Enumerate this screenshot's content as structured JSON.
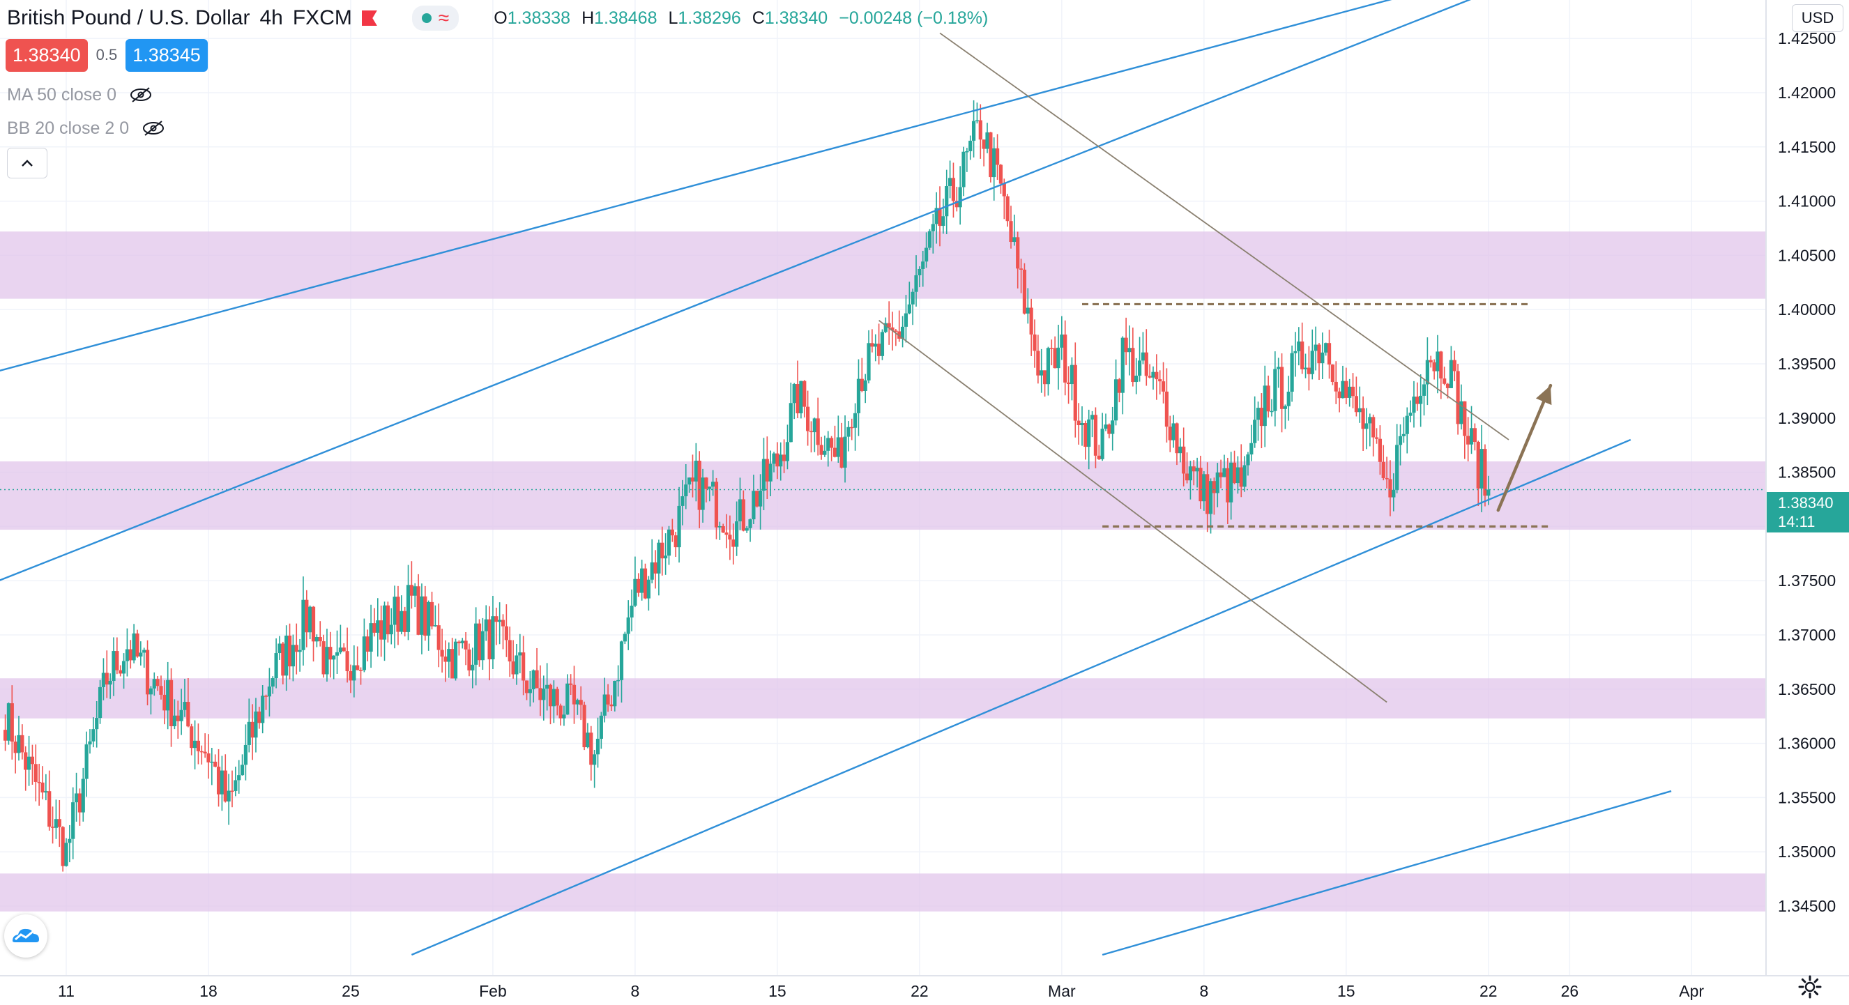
{
  "header": {
    "symbol": "British Pound / U.S. Dollar",
    "interval": "4h",
    "exchange": "FXCM",
    "ohlc": [
      {
        "k": "O",
        "v": "1.38338"
      },
      {
        "k": "H",
        "v": "1.38468"
      },
      {
        "k": "L",
        "v": "1.38296"
      },
      {
        "k": "C",
        "v": "1.38340"
      }
    ],
    "change": "−0.00248 (−0.18%)",
    "sell_price": "1.38340",
    "spread": "0.5",
    "buy_price": "1.38345"
  },
  "indicators": {
    "ma": "MA 50 close 0",
    "bb": "BB 20 close 2 0"
  },
  "currency_button": "USD",
  "last_price_label": {
    "price": "1.38340",
    "countdown": "14:11"
  },
  "colors": {
    "up": "#26a69a",
    "down": "#ef5350",
    "zone": "#e1c4ea",
    "channel": "#2f8fd8",
    "trend": "#8a8070",
    "dashed": "#8b7355",
    "arrow": "#8b7355"
  },
  "chart_data": {
    "type": "candlestick",
    "symbol": "GBPUSD",
    "timeframe": "4h",
    "y_axis": {
      "range": [
        1.3415,
        1.43
      ],
      "ticks": [
        "1.34500",
        "1.35000",
        "1.35500",
        "1.36000",
        "1.36500",
        "1.37000",
        "1.37500",
        "1.38000",
        "1.38500",
        "1.39000",
        "1.39500",
        "1.40000",
        "1.40500",
        "1.41000",
        "1.41500",
        "1.42000",
        "1.42500"
      ]
    },
    "x_axis": {
      "ticks": [
        {
          "label": "11",
          "date": "2021-01-11"
        },
        {
          "label": "18",
          "date": "2021-01-18"
        },
        {
          "label": "25",
          "date": "2021-01-25"
        },
        {
          "label": "Feb",
          "date": "2021-02-01"
        },
        {
          "label": "8",
          "date": "2021-02-08"
        },
        {
          "label": "15",
          "date": "2021-02-15"
        },
        {
          "label": "22",
          "date": "2021-02-22"
        },
        {
          "label": "Mar",
          "date": "2021-03-01"
        },
        {
          "label": "8",
          "date": "2021-03-08"
        },
        {
          "label": "15",
          "date": "2021-03-15"
        },
        {
          "label": "22",
          "date": "2021-03-22"
        },
        {
          "label": "26",
          "date": "2021-03-26"
        },
        {
          "label": "Apr",
          "date": "2021-04-01"
        }
      ]
    },
    "anchors": [
      {
        "date": "2021-01-08",
        "close": 1.3625
      },
      {
        "date": "2021-01-11",
        "close": 1.35
      },
      {
        "date": "2021-01-13",
        "close": 1.366
      },
      {
        "date": "2021-01-14",
        "close": 1.369
      },
      {
        "date": "2021-01-16",
        "close": 1.364
      },
      {
        "date": "2021-01-18",
        "close": 1.359
      },
      {
        "date": "2021-01-19",
        "close": 1.354
      },
      {
        "date": "2021-01-21",
        "close": 1.366
      },
      {
        "date": "2021-01-22",
        "close": 1.369
      },
      {
        "date": "2021-01-23",
        "close": 1.372
      },
      {
        "date": "2021-01-24",
        "close": 1.366
      },
      {
        "date": "2021-01-26",
        "close": 1.37
      },
      {
        "date": "2021-01-28",
        "close": 1.373
      },
      {
        "date": "2021-01-30",
        "close": 1.368
      },
      {
        "date": "2021-02-01",
        "close": 1.37
      },
      {
        "date": "2021-02-03",
        "close": 1.365
      },
      {
        "date": "2021-02-05",
        "close": 1.363
      },
      {
        "date": "2021-02-06",
        "close": 1.359
      },
      {
        "date": "2021-02-07",
        "close": 1.366
      },
      {
        "date": "2021-02-08",
        "close": 1.374
      },
      {
        "date": "2021-02-10",
        "close": 1.38
      },
      {
        "date": "2021-02-11",
        "close": 1.384
      },
      {
        "date": "2021-02-13",
        "close": 1.38
      },
      {
        "date": "2021-02-15",
        "close": 1.386
      },
      {
        "date": "2021-02-16",
        "close": 1.392
      },
      {
        "date": "2021-02-17",
        "close": 1.389
      },
      {
        "date": "2021-02-18",
        "close": 1.386
      },
      {
        "date": "2021-02-19",
        "close": 1.394
      },
      {
        "date": "2021-02-21",
        "close": 1.398
      },
      {
        "date": "2021-02-22",
        "close": 1.403
      },
      {
        "date": "2021-02-23",
        "close": 1.408
      },
      {
        "date": "2021-02-24",
        "close": 1.412
      },
      {
        "date": "2021-02-25",
        "close": 1.417
      },
      {
        "date": "2021-02-26",
        "close": 1.411
      },
      {
        "date": "2021-02-27",
        "close": 1.402
      },
      {
        "date": "2021-02-28",
        "close": 1.394
      },
      {
        "date": "2021-03-01",
        "close": 1.396
      },
      {
        "date": "2021-03-02",
        "close": 1.39
      },
      {
        "date": "2021-03-03",
        "close": 1.387
      },
      {
        "date": "2021-03-04",
        "close": 1.396
      },
      {
        "date": "2021-03-05",
        "close": 1.394
      },
      {
        "date": "2021-03-06",
        "close": 1.392
      },
      {
        "date": "2021-03-07",
        "close": 1.386
      },
      {
        "date": "2021-03-08",
        "close": 1.383
      },
      {
        "date": "2021-03-09",
        "close": 1.384
      },
      {
        "date": "2021-03-10",
        "close": 1.384
      },
      {
        "date": "2021-03-11",
        "close": 1.392
      },
      {
        "date": "2021-03-12",
        "close": 1.393
      },
      {
        "date": "2021-03-13",
        "close": 1.396
      },
      {
        "date": "2021-03-14",
        "close": 1.397
      },
      {
        "date": "2021-03-15",
        "close": 1.392
      },
      {
        "date": "2021-03-16",
        "close": 1.389
      },
      {
        "date": "2021-03-17",
        "close": 1.383
      },
      {
        "date": "2021-03-18",
        "close": 1.39
      },
      {
        "date": "2021-03-19",
        "close": 1.396
      },
      {
        "date": "2021-03-20",
        "close": 1.395
      },
      {
        "date": "2021-03-21",
        "close": 1.388
      },
      {
        "date": "2021-03-22",
        "close": 1.3834
      }
    ],
    "last_price": 1.3834,
    "zones": [
      {
        "from": 1.401,
        "to": 1.4072
      },
      {
        "from": 1.3797,
        "to": 1.386
      },
      {
        "from": 1.3623,
        "to": 1.366
      },
      {
        "from": 1.3445,
        "to": 1.348
      }
    ],
    "trendlines": [
      {
        "kind": "channel",
        "from": {
          "date": "2021-01-07",
          "price": 1.394
        },
        "to": {
          "date": "2021-03-20",
          "price": 1.43
        }
      },
      {
        "kind": "channel",
        "from": {
          "date": "2021-01-07",
          "price": 1.3745
        },
        "to": {
          "date": "2021-03-23",
          "price": 1.43
        }
      },
      {
        "kind": "channel",
        "from": {
          "date": "2021-01-28",
          "price": 1.3405
        },
        "to": {
          "date": "2021-03-29",
          "price": 1.388
        }
      },
      {
        "kind": "channel",
        "from": {
          "date": "2021-03-03",
          "price": 1.3405
        },
        "to": {
          "date": "2021-03-31",
          "price": 1.3556
        }
      },
      {
        "kind": "trend",
        "from": {
          "date": "2021-02-23",
          "price": 1.4255
        },
        "to": {
          "date": "2021-03-23",
          "price": 1.388
        }
      },
      {
        "kind": "trend",
        "from": {
          "date": "2021-02-20",
          "price": 1.399
        },
        "to": {
          "date": "2021-03-17",
          "price": 1.3638
        }
      }
    ],
    "levels": [
      {
        "price": 1.4005,
        "from": "2021-03-02",
        "to": "2021-03-24"
      },
      {
        "price": 1.38,
        "from": "2021-03-03",
        "to": "2021-03-25"
      }
    ],
    "arrow": {
      "from": {
        "date": "2021-03-22",
        "price": 1.3815
      },
      "to": {
        "date": "2021-03-23",
        "price": 1.393
      }
    },
    "grid": true
  }
}
